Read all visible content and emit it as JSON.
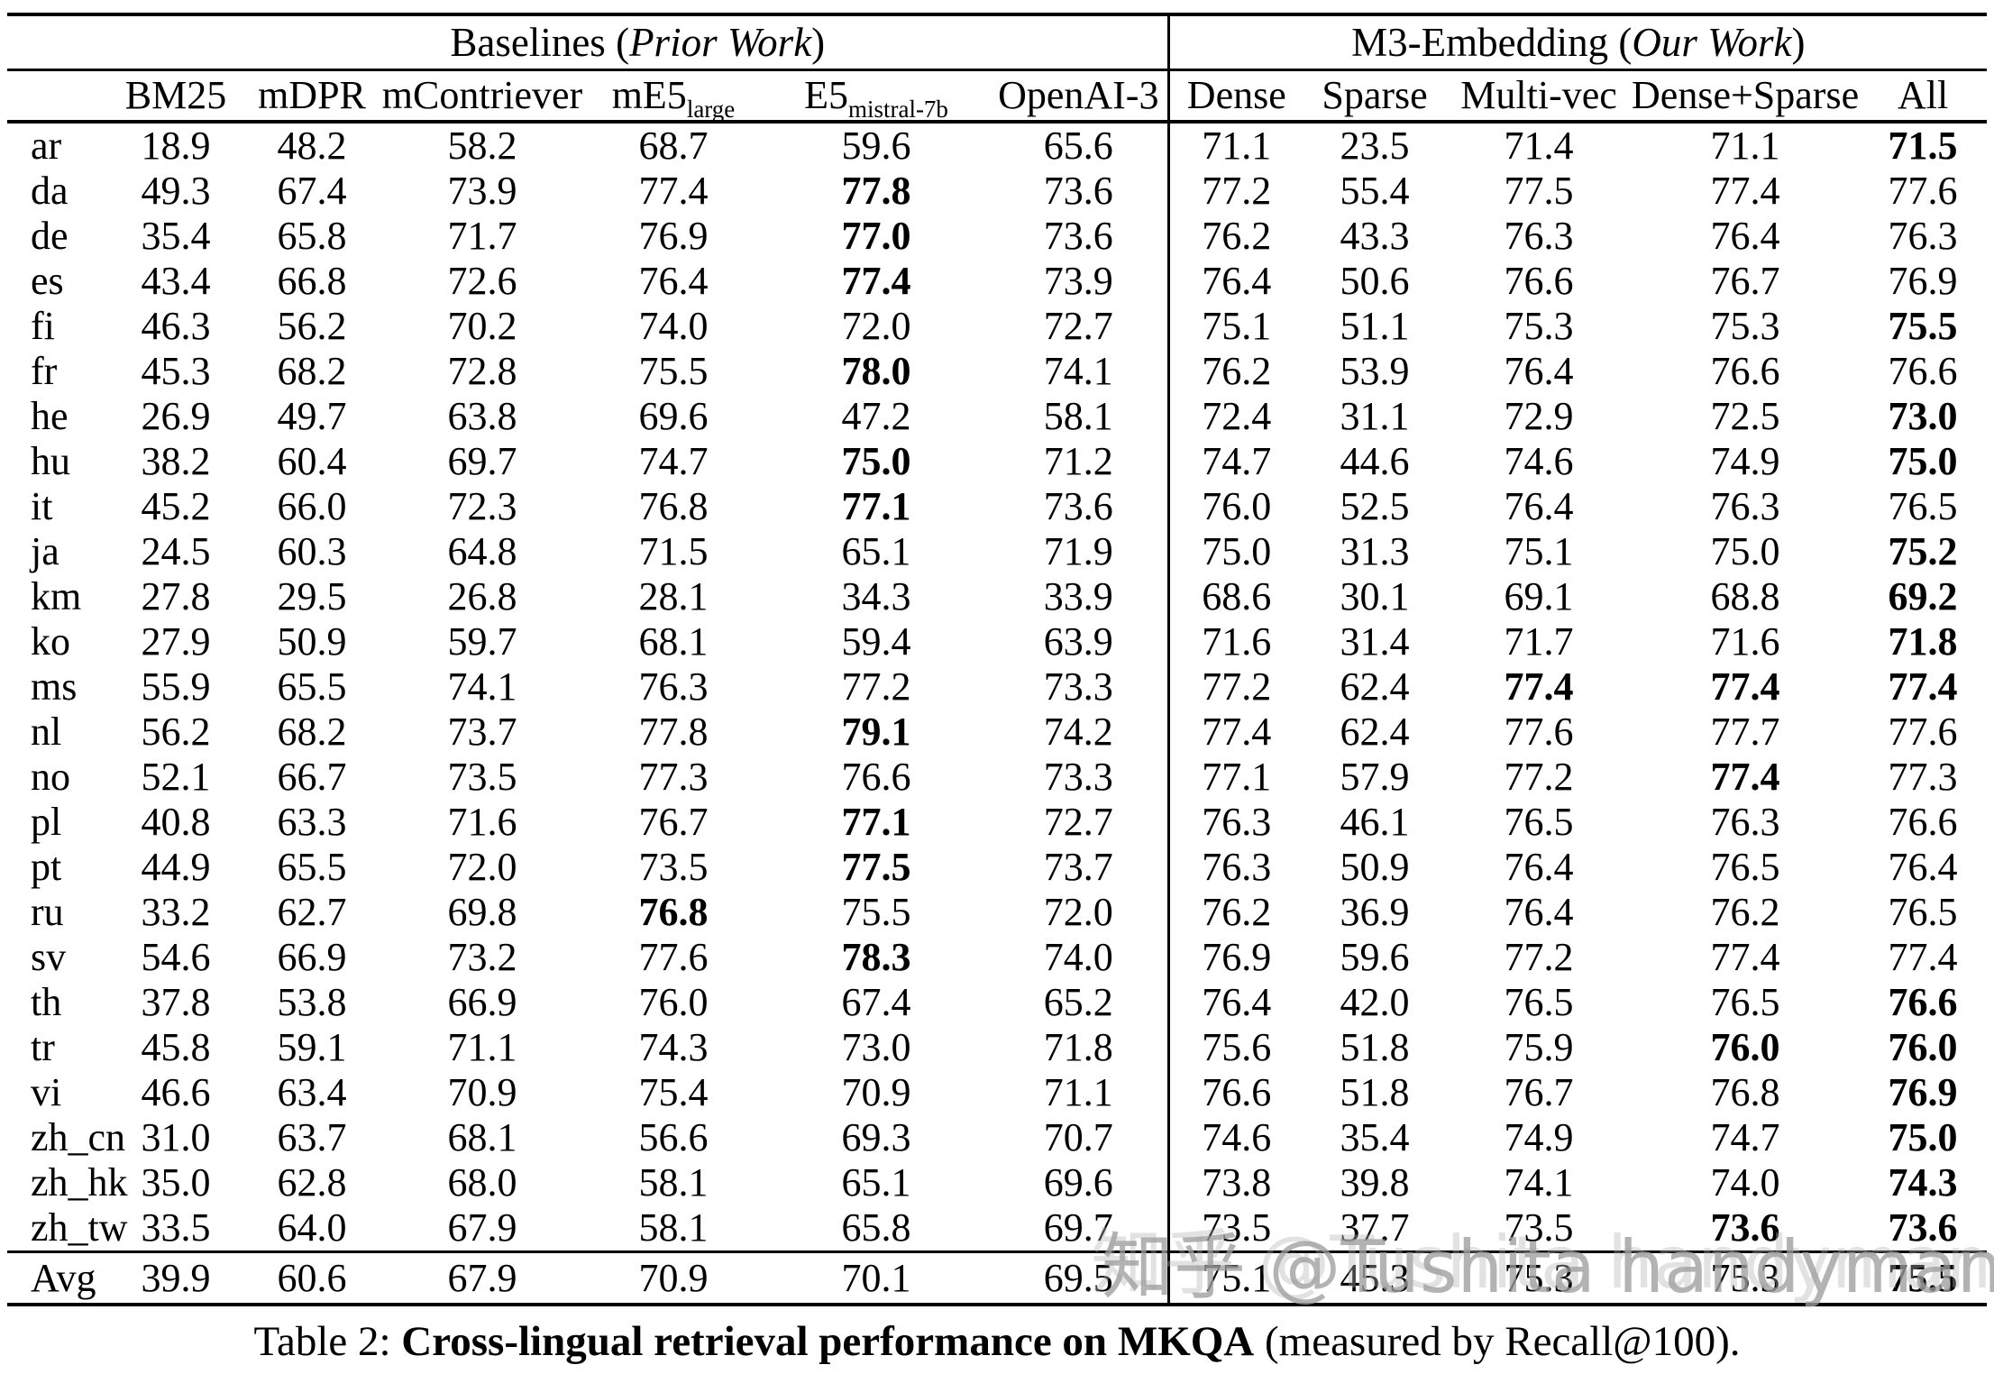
{
  "table": {
    "groups": [
      {
        "prefix": "Baselines (",
        "italic": "Prior Work",
        "suffix": ")"
      },
      {
        "prefix": "M3-Embedding (",
        "italic": "Our Work",
        "suffix": ")"
      }
    ],
    "columns": [
      {
        "label": "BM25"
      },
      {
        "label": "mDPR"
      },
      {
        "label": "mContriever"
      },
      {
        "base": "mE5",
        "sub": "large"
      },
      {
        "base": "E5",
        "sub": "mistral-7b"
      },
      {
        "label": "OpenAI-3"
      },
      {
        "label": "Dense"
      },
      {
        "label": "Sparse"
      },
      {
        "label": "Multi-vec"
      },
      {
        "label": "Dense+Sparse"
      },
      {
        "label": "All"
      }
    ],
    "rows": [
      {
        "lang": "ar",
        "values": [
          "18.9",
          "48.2",
          "58.2",
          "68.7",
          "59.6",
          "65.6",
          "71.1",
          "23.5",
          "71.4",
          "71.1",
          "71.5"
        ],
        "bold": [
          10
        ]
      },
      {
        "lang": "da",
        "values": [
          "49.3",
          "67.4",
          "73.9",
          "77.4",
          "77.8",
          "73.6",
          "77.2",
          "55.4",
          "77.5",
          "77.4",
          "77.6"
        ],
        "bold": [
          4
        ]
      },
      {
        "lang": "de",
        "values": [
          "35.4",
          "65.8",
          "71.7",
          "76.9",
          "77.0",
          "73.6",
          "76.2",
          "43.3",
          "76.3",
          "76.4",
          "76.3"
        ],
        "bold": [
          4
        ]
      },
      {
        "lang": "es",
        "values": [
          "43.4",
          "66.8",
          "72.6",
          "76.4",
          "77.4",
          "73.9",
          "76.4",
          "50.6",
          "76.6",
          "76.7",
          "76.9"
        ],
        "bold": [
          4
        ]
      },
      {
        "lang": "fi",
        "values": [
          "46.3",
          "56.2",
          "70.2",
          "74.0",
          "72.0",
          "72.7",
          "75.1",
          "51.1",
          "75.3",
          "75.3",
          "75.5"
        ],
        "bold": [
          10
        ]
      },
      {
        "lang": "fr",
        "values": [
          "45.3",
          "68.2",
          "72.8",
          "75.5",
          "78.0",
          "74.1",
          "76.2",
          "53.9",
          "76.4",
          "76.6",
          "76.6"
        ],
        "bold": [
          4
        ]
      },
      {
        "lang": "he",
        "values": [
          "26.9",
          "49.7",
          "63.8",
          "69.6",
          "47.2",
          "58.1",
          "72.4",
          "31.1",
          "72.9",
          "72.5",
          "73.0"
        ],
        "bold": [
          10
        ]
      },
      {
        "lang": "hu",
        "values": [
          "38.2",
          "60.4",
          "69.7",
          "74.7",
          "75.0",
          "71.2",
          "74.7",
          "44.6",
          "74.6",
          "74.9",
          "75.0"
        ],
        "bold": [
          4,
          10
        ]
      },
      {
        "lang": "it",
        "values": [
          "45.2",
          "66.0",
          "72.3",
          "76.8",
          "77.1",
          "73.6",
          "76.0",
          "52.5",
          "76.4",
          "76.3",
          "76.5"
        ],
        "bold": [
          4
        ]
      },
      {
        "lang": "ja",
        "values": [
          "24.5",
          "60.3",
          "64.8",
          "71.5",
          "65.1",
          "71.9",
          "75.0",
          "31.3",
          "75.1",
          "75.0",
          "75.2"
        ],
        "bold": [
          10
        ]
      },
      {
        "lang": "km",
        "values": [
          "27.8",
          "29.5",
          "26.8",
          "28.1",
          "34.3",
          "33.9",
          "68.6",
          "30.1",
          "69.1",
          "68.8",
          "69.2"
        ],
        "bold": [
          10
        ]
      },
      {
        "lang": "ko",
        "values": [
          "27.9",
          "50.9",
          "59.7",
          "68.1",
          "59.4",
          "63.9",
          "71.6",
          "31.4",
          "71.7",
          "71.6",
          "71.8"
        ],
        "bold": [
          10
        ]
      },
      {
        "lang": "ms",
        "values": [
          "55.9",
          "65.5",
          "74.1",
          "76.3",
          "77.2",
          "73.3",
          "77.2",
          "62.4",
          "77.4",
          "77.4",
          "77.4"
        ],
        "bold": [
          8,
          9,
          10
        ]
      },
      {
        "lang": "nl",
        "values": [
          "56.2",
          "68.2",
          "73.7",
          "77.8",
          "79.1",
          "74.2",
          "77.4",
          "62.4",
          "77.6",
          "77.7",
          "77.6"
        ],
        "bold": [
          4
        ]
      },
      {
        "lang": "no",
        "values": [
          "52.1",
          "66.7",
          "73.5",
          "77.3",
          "76.6",
          "73.3",
          "77.1",
          "57.9",
          "77.2",
          "77.4",
          "77.3"
        ],
        "bold": [
          9
        ]
      },
      {
        "lang": "pl",
        "values": [
          "40.8",
          "63.3",
          "71.6",
          "76.7",
          "77.1",
          "72.7",
          "76.3",
          "46.1",
          "76.5",
          "76.3",
          "76.6"
        ],
        "bold": [
          4
        ]
      },
      {
        "lang": "pt",
        "values": [
          "44.9",
          "65.5",
          "72.0",
          "73.5",
          "77.5",
          "73.7",
          "76.3",
          "50.9",
          "76.4",
          "76.5",
          "76.4"
        ],
        "bold": [
          4
        ]
      },
      {
        "lang": "ru",
        "values": [
          "33.2",
          "62.7",
          "69.8",
          "76.8",
          "75.5",
          "72.0",
          "76.2",
          "36.9",
          "76.4",
          "76.2",
          "76.5"
        ],
        "bold": [
          3
        ]
      },
      {
        "lang": "sv",
        "values": [
          "54.6",
          "66.9",
          "73.2",
          "77.6",
          "78.3",
          "74.0",
          "76.9",
          "59.6",
          "77.2",
          "77.4",
          "77.4"
        ],
        "bold": [
          4
        ]
      },
      {
        "lang": "th",
        "values": [
          "37.8",
          "53.8",
          "66.9",
          "76.0",
          "67.4",
          "65.2",
          "76.4",
          "42.0",
          "76.5",
          "76.5",
          "76.6"
        ],
        "bold": [
          10
        ]
      },
      {
        "lang": "tr",
        "values": [
          "45.8",
          "59.1",
          "71.1",
          "74.3",
          "73.0",
          "71.8",
          "75.6",
          "51.8",
          "75.9",
          "76.0",
          "76.0"
        ],
        "bold": [
          9,
          10
        ]
      },
      {
        "lang": "vi",
        "values": [
          "46.6",
          "63.4",
          "70.9",
          "75.4",
          "70.9",
          "71.1",
          "76.6",
          "51.8",
          "76.7",
          "76.8",
          "76.9"
        ],
        "bold": [
          10
        ]
      },
      {
        "lang": "zh_cn",
        "values": [
          "31.0",
          "63.7",
          "68.1",
          "56.6",
          "69.3",
          "70.7",
          "74.6",
          "35.4",
          "74.9",
          "74.7",
          "75.0"
        ],
        "bold": [
          10
        ]
      },
      {
        "lang": "zh_hk",
        "values": [
          "35.0",
          "62.8",
          "68.0",
          "58.1",
          "65.1",
          "69.6",
          "73.8",
          "39.8",
          "74.1",
          "74.0",
          "74.3"
        ],
        "bold": [
          10
        ]
      },
      {
        "lang": "zh_tw",
        "values": [
          "33.5",
          "64.0",
          "67.9",
          "58.1",
          "65.8",
          "69.7",
          "73.5",
          "37.7",
          "73.5",
          "73.6",
          "73.6"
        ],
        "bold": [
          9,
          10
        ]
      },
      {
        "lang": "Avg",
        "values": [
          "39.9",
          "60.6",
          "67.9",
          "70.9",
          "70.1",
          "69.5",
          "75.1",
          "45.3",
          "75.3",
          "75.3",
          "75.5"
        ],
        "bold": [
          10
        ]
      }
    ]
  },
  "caption": {
    "prefix": "Table 2: ",
    "bold": "Cross-lingual retrieval performance on MKQA",
    "suffix": " (measured by Recall@100)."
  },
  "watermark": {
    "text": "知乎 @Tushita handyman",
    "color": "#9e9e9e"
  }
}
